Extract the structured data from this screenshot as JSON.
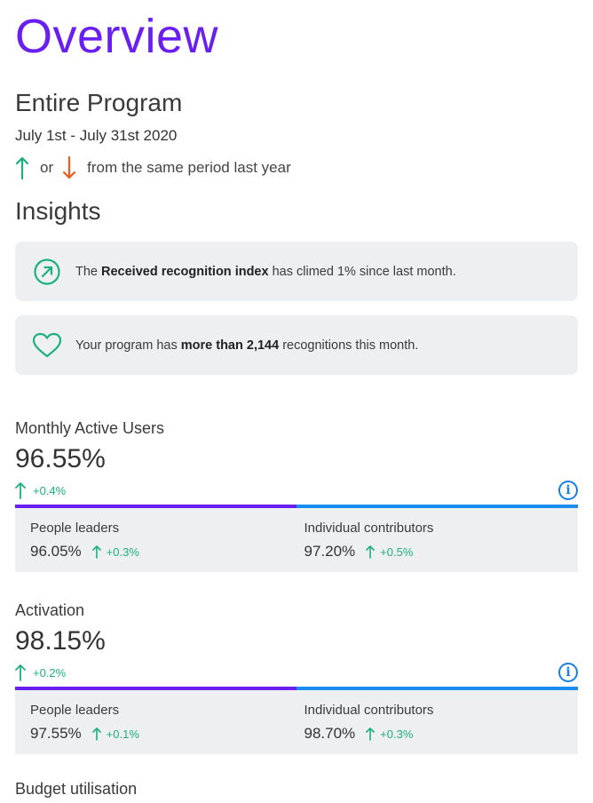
{
  "page": {
    "title": "Overview"
  },
  "program": {
    "heading": "Entire Program",
    "date_range": "July 1st - July 31st 2020",
    "legend": {
      "or": "or",
      "description": "from the same period last year",
      "up_color": "#1cb07c",
      "down_color": "#f05a1a"
    }
  },
  "insights": {
    "heading": "Insights",
    "items": [
      {
        "icon": "trending-up-circle-icon",
        "prefix": "The ",
        "bold": "Received recognition index",
        "suffix": " has climed 1% since last month."
      },
      {
        "icon": "heart-icon",
        "prefix": "Your program has ",
        "bold": "more than 2,144",
        "suffix": " recognitions this month."
      }
    ]
  },
  "metrics": [
    {
      "label": "Monthly Active Users",
      "value": "96.55%",
      "change": "+0.4%",
      "breakdown": [
        {
          "label": "People leaders",
          "value": "96.05%",
          "change": "+0.3%"
        },
        {
          "label": "Individual contributors",
          "value": "97.20%",
          "change": "+0.5%"
        }
      ]
    },
    {
      "label": "Activation",
      "value": "98.15%",
      "change": "+0.2%",
      "breakdown": [
        {
          "label": "People leaders",
          "value": "97.55%",
          "change": "+0.1%"
        },
        {
          "label": "Individual contributors",
          "value": "98.70%",
          "change": "+0.3%"
        }
      ]
    }
  ],
  "budget": {
    "label": "Budget utilisation"
  },
  "colors": {
    "accent_purple": "#6a1ff0",
    "accent_blue": "#1a8ef0",
    "positive_green": "#1cb07c",
    "negative_orange": "#f05a1a",
    "card_bg": "#eeeff1"
  }
}
